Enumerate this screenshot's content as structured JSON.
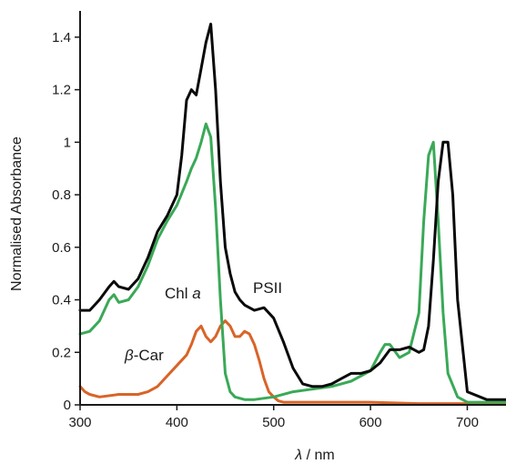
{
  "chart_data": {
    "type": "line",
    "xlabel_symbol": "λ",
    "xlabel_unit": " / nm",
    "ylabel": "Normalised Absorbance",
    "xlim": [
      300,
      740
    ],
    "ylim": [
      0,
      1.5
    ],
    "x_ticks": [
      300,
      400,
      500,
      600,
      700
    ],
    "y_ticks": [
      0,
      0.2,
      0.4,
      0.6,
      0.8,
      1,
      1.2,
      1.4
    ],
    "y_tick_labels": [
      "0",
      "0.2",
      "0.4",
      "0.6",
      "0.8",
      "1",
      "1.2",
      "1.4"
    ],
    "grid": false,
    "series": [
      {
        "name": "PSII",
        "color": "#0a0a0a",
        "x": [
          300,
          310,
          320,
          330,
          335,
          340,
          350,
          360,
          370,
          380,
          390,
          400,
          405,
          410,
          415,
          420,
          425,
          430,
          435,
          440,
          445,
          450,
          455,
          460,
          465,
          470,
          480,
          490,
          500,
          510,
          520,
          530,
          540,
          550,
          560,
          570,
          580,
          590,
          600,
          610,
          620,
          630,
          640,
          650,
          655,
          660,
          665,
          670,
          675,
          680,
          685,
          690,
          700,
          720,
          740
        ],
        "y": [
          0.36,
          0.36,
          0.4,
          0.45,
          0.47,
          0.45,
          0.44,
          0.48,
          0.56,
          0.66,
          0.72,
          0.8,
          0.95,
          1.16,
          1.2,
          1.18,
          1.28,
          1.38,
          1.45,
          1.2,
          0.85,
          0.6,
          0.5,
          0.43,
          0.4,
          0.38,
          0.36,
          0.37,
          0.33,
          0.24,
          0.14,
          0.08,
          0.07,
          0.07,
          0.08,
          0.1,
          0.12,
          0.12,
          0.13,
          0.16,
          0.21,
          0.21,
          0.22,
          0.2,
          0.21,
          0.3,
          0.55,
          0.85,
          1.0,
          1.0,
          0.8,
          0.4,
          0.05,
          0.02,
          0.02
        ]
      },
      {
        "name": "Chl a",
        "color": "#3aa957",
        "x": [
          300,
          310,
          320,
          330,
          335,
          340,
          350,
          360,
          370,
          380,
          390,
          400,
          410,
          415,
          420,
          425,
          430,
          435,
          440,
          445,
          450,
          455,
          460,
          470,
          480,
          500,
          520,
          540,
          560,
          580,
          600,
          610,
          615,
          620,
          630,
          640,
          650,
          655,
          660,
          665,
          670,
          675,
          680,
          690,
          700,
          720,
          740
        ],
        "y": [
          0.27,
          0.28,
          0.32,
          0.4,
          0.42,
          0.39,
          0.4,
          0.45,
          0.53,
          0.63,
          0.7,
          0.76,
          0.85,
          0.9,
          0.94,
          1.0,
          1.07,
          1.02,
          0.75,
          0.4,
          0.12,
          0.05,
          0.03,
          0.02,
          0.02,
          0.03,
          0.05,
          0.06,
          0.07,
          0.09,
          0.13,
          0.2,
          0.23,
          0.23,
          0.18,
          0.2,
          0.35,
          0.7,
          0.95,
          1.0,
          0.7,
          0.35,
          0.12,
          0.03,
          0.01,
          0.01,
          0.01
        ]
      },
      {
        "name": "β-Car",
        "color": "#d86428",
        "x": [
          300,
          305,
          310,
          320,
          340,
          360,
          370,
          380,
          390,
          400,
          410,
          415,
          420,
          425,
          430,
          435,
          440,
          445,
          450,
          455,
          460,
          465,
          470,
          475,
          480,
          485,
          490,
          495,
          500,
          505,
          510,
          520,
          540,
          560,
          600,
          650,
          700,
          740
        ],
        "y": [
          0.07,
          0.05,
          0.04,
          0.03,
          0.04,
          0.04,
          0.05,
          0.07,
          0.11,
          0.15,
          0.19,
          0.23,
          0.28,
          0.3,
          0.26,
          0.24,
          0.26,
          0.3,
          0.32,
          0.3,
          0.26,
          0.26,
          0.28,
          0.27,
          0.23,
          0.17,
          0.1,
          0.05,
          0.03,
          0.015,
          0.01,
          0.01,
          0.01,
          0.01,
          0.01,
          0.005,
          0.005,
          0.005
        ]
      }
    ],
    "series_labels": {
      "chl_main": "Chl ",
      "chl_italic": "a",
      "psii": "PSII",
      "car_greek": "β",
      "car_rest": "-Car"
    }
  }
}
